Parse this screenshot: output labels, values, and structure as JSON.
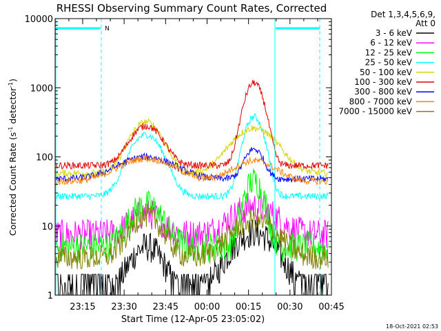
{
  "chart_data": {
    "type": "line",
    "title": "RHESSI Observing Summary Count Rates, Corrected",
    "xlabel": "Start Time (12-Apr-05 23:05:02)",
    "ylabel": "Corrected Count Rate (s",
    "ylabel_sup1": "-1",
    "ylabel_mid": " detector",
    "ylabel_sup2": "-1",
    "ylabel_end": ")",
    "y_scale": "log",
    "ylim": [
      1,
      10000
    ],
    "xlim": [
      "23:05:02",
      "00:45:00"
    ],
    "x_ticks": [
      "23:15",
      "23:30",
      "23:45",
      "00:00",
      "00:15",
      "00:30",
      "00:45"
    ],
    "y_ticks": [
      "1",
      "10",
      "100",
      "1000",
      "10000"
    ],
    "legend_header": [
      "Det 1,3,4,5,6,9,",
      "Att 0"
    ],
    "legend_position": "right",
    "timestamp": "18-Oct-2021 02:53",
    "flag_label": "N",
    "series": [
      {
        "name": "3 - 6 keV",
        "color": "#000000",
        "approx_levels": {
          "quiet": 1,
          "peak1": 5,
          "peak2": 8
        }
      },
      {
        "name": "6 - 12 keV",
        "color": "#ff00ff",
        "approx_levels": {
          "quiet": 7.5,
          "peak1": 15,
          "peak2": 19
        }
      },
      {
        "name": "12 - 25 keV",
        "color": "#00ff00",
        "approx_levels": {
          "quiet": 5,
          "peak1": 20,
          "peak2": 45
        }
      },
      {
        "name": "25 - 50 keV",
        "color": "#00ffff",
        "approx_levels": {
          "quiet": 27,
          "peak1": 210,
          "peak2": 380
        }
      },
      {
        "name": "50 - 100 keV",
        "color": "#d4d400",
        "approx_levels": {
          "quiet": 58,
          "peak1": 320,
          "peak2": 260
        }
      },
      {
        "name": "100 - 300 keV",
        "color": "#e00000",
        "approx_levels": {
          "quiet": 75,
          "peak1": 280,
          "peak2": 1180
        }
      },
      {
        "name": "300 - 800 keV",
        "color": "#0000ff",
        "approx_levels": {
          "quiet": 48,
          "peak1": 100,
          "peak2": 130
        }
      },
      {
        "name": "800 - 7000 keV",
        "color": "#ff8000",
        "approx_levels": {
          "quiet": 44,
          "peak1": 95,
          "peak2": 88
        }
      },
      {
        "name": "7000 - 15000 keV",
        "color": "#808000",
        "approx_levels": {
          "quiet": 3.5,
          "peak1": 14,
          "peak2": 12
        }
      }
    ]
  }
}
